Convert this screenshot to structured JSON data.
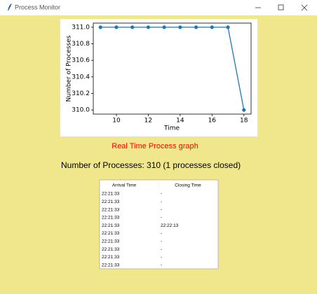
{
  "window": {
    "title": "Process Monitor"
  },
  "chart_data": {
    "type": "line",
    "x": [
      9,
      10,
      11,
      12,
      13,
      14,
      15,
      16,
      17,
      18
    ],
    "series": [
      {
        "color": "#1f77b4",
        "values": [
          311,
          311,
          311,
          311,
          311,
          311,
          311,
          311,
          311,
          310
        ]
      }
    ],
    "xlabel": "Time",
    "ylabel": "Number of Processes",
    "xlim": [
      8.55,
      18.45
    ],
    "ylim": [
      309.95,
      311.05
    ],
    "xticks": [
      10,
      12,
      14,
      16,
      18
    ],
    "yticks": [
      {
        "value": 310,
        "label": "310.0"
      },
      {
        "value": 310.2,
        "label": "310.2"
      },
      {
        "value": 310.4,
        "label": "310.4"
      },
      {
        "value": 310.6,
        "label": "310.6"
      },
      {
        "value": 310.8,
        "label": "310.8"
      },
      {
        "value": 311,
        "label": "311.0"
      }
    ],
    "grid": false
  },
  "caption": "Real Time Process graph",
  "status": "Number of Processes: 310 (1 processes closed)",
  "table": {
    "columns": [
      "Arrival Time",
      "Closing Time"
    ],
    "rows": [
      [
        "22:21:33",
        "-"
      ],
      [
        "22:21:33",
        "-"
      ],
      [
        "22:21:33",
        "-"
      ],
      [
        "22:21:33",
        "-"
      ],
      [
        "22:21:33",
        "22:22:13"
      ],
      [
        "22:21:33",
        "-"
      ],
      [
        "22:21:33",
        "-"
      ],
      [
        "22:21:33",
        "-"
      ],
      [
        "22:21:33",
        "-"
      ],
      [
        "22:21:33",
        "-"
      ]
    ]
  }
}
